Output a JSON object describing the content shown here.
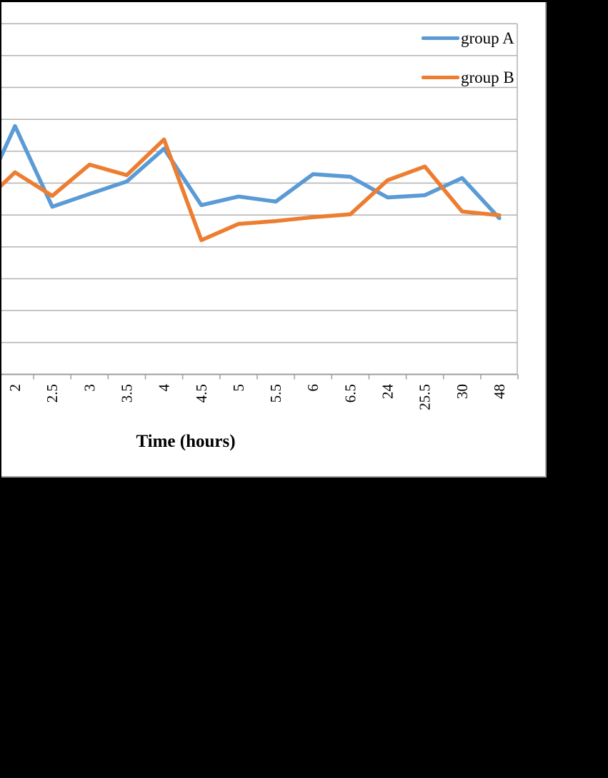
{
  "figure": {
    "background_color": "#000000",
    "chart_background_color": "#ffffff",
    "chart_border_color": "#a6a6a6"
  },
  "chart_data": {
    "type": "line",
    "title": "",
    "xlabel": "Time (hours)",
    "ylabel": "",
    "y_axis_note": "y-axis tick labels are cropped off the left edge of the screenshot; values below are measured in horizontal-gridline units above the x-axis",
    "y_range_gridline_units": [
      0,
      11.7
    ],
    "gridline_count_above_axis": 11,
    "grid": {
      "visible": true,
      "color": "#b2b2b2"
    },
    "axis_color": "#9e9e9e",
    "legend_position": "top-right",
    "categories": [
      "2",
      "2.5",
      "3",
      "3.5",
      "4",
      "4.5",
      "5",
      "5.5",
      "6",
      "6.5",
      "24",
      "25.5",
      "30",
      "48"
    ],
    "series": [
      {
        "name": "group A",
        "color": "#5B9BD5",
        "left_edge_entry_value": 6.76,
        "values": [
          7.79,
          5.26,
          5.66,
          6.05,
          7.08,
          5.31,
          5.58,
          5.42,
          6.28,
          6.2,
          5.55,
          5.62,
          6.16,
          4.9
        ]
      },
      {
        "name": "group B",
        "color": "#ED7D31",
        "left_edge_entry_value": 5.89,
        "values": [
          6.34,
          5.6,
          6.58,
          6.25,
          7.37,
          4.21,
          4.72,
          4.81,
          4.93,
          5.02,
          6.09,
          6.52,
          5.11,
          4.99
        ]
      }
    ]
  }
}
